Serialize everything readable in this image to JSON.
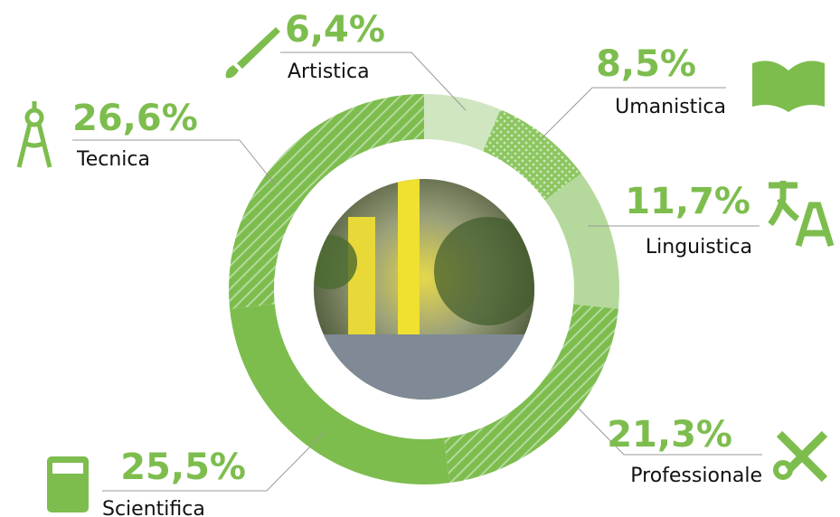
{
  "chart_data": {
    "type": "donut",
    "categories": [
      "Artistica",
      "Umanistica",
      "Linguistica",
      "Professionale",
      "Scientifica",
      "Tecnica"
    ],
    "values": [
      6.4,
      8.5,
      11.7,
      21.3,
      25.5,
      26.6
    ],
    "value_labels": [
      "6,4%",
      "8,5%",
      "11,7%",
      "21,3%",
      "25,5%",
      "26,6%"
    ],
    "colors": [
      "#cfe6c0",
      "#8cc65f",
      "#b5d99c",
      "#8cc65f",
      "#7dbd4e",
      "#7dbd4e"
    ],
    "patterns": [
      "none",
      "dots",
      "none",
      "stripes",
      "none",
      "stripes"
    ]
  }
}
